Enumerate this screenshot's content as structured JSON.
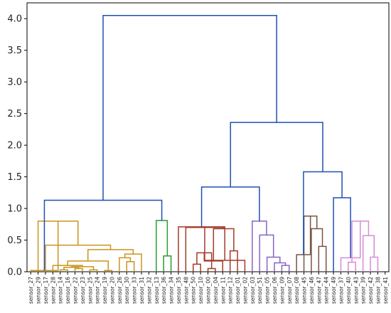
{
  "chart_data": {
    "type": "dendrogram",
    "title": "",
    "xlabel": "",
    "ylabel": "",
    "ylim": [
      0,
      4.25
    ],
    "yticks": [
      "0.0",
      "0.5",
      "1.0",
      "1.5",
      "2.0",
      "2.5",
      "3.0",
      "3.5",
      "4.0"
    ],
    "grid": false,
    "above_threshold_color": "#1f4fb4",
    "cluster_colors": [
      "#c9941f",
      "#2f9a2f",
      "#a23a2a",
      "#8a63c4",
      "#7a5444",
      "#d88ad8"
    ],
    "leaves": [
      "sensor_27",
      "sensor_29",
      "sensor_17",
      "sensor_28",
      "sensor_14",
      "sensor_16",
      "sensor_22",
      "sensor_23",
      "sensor_25",
      "sensor_24",
      "sensor_19",
      "sensor_20",
      "sensor_26",
      "sensor_30",
      "sensor_33",
      "sensor_31",
      "sensor_32",
      "sensor_13",
      "sensor_36",
      "sensor_34",
      "sensor_35",
      "sensor_48",
      "sensor_50",
      "sensor_10",
      "sensor_00",
      "sensor_04",
      "sensor_11",
      "sensor_12",
      "sensor_01",
      "sensor_02",
      "sensor_03",
      "sensor_51",
      "sensor_05",
      "sensor_06",
      "sensor_09",
      "sensor_07",
      "sensor_08",
      "sensor_45",
      "sensor_46",
      "sensor_47",
      "sensor_44",
      "sensor_49",
      "sensor_37",
      "sensor_40",
      "sensor_43",
      "sensor_39",
      "sensor_42",
      "sensor_38",
      "sensor_41"
    ],
    "merges": [
      {
        "a": "L23",
        "b": "L24",
        "h": 0.12,
        "cluster": 2
      },
      {
        "a": "L25",
        "b": "L26",
        "h": 0.05,
        "cluster": 2
      },
      {
        "a": "M1",
        "b": "M2",
        "h": 0.3,
        "cluster": 2
      },
      {
        "a": "M3",
        "b": "L27",
        "h": 0.17,
        "cluster": 2
      },
      {
        "a": "L28",
        "b": "L29",
        "h": 0.33,
        "cluster": 2
      },
      {
        "a": "M4",
        "b": "M5",
        "h": 0.68,
        "cluster": 2
      },
      {
        "a": "L22",
        "b": "M6",
        "h": 0.7,
        "cluster": 2
      },
      {
        "a": "M7",
        "b": "L30",
        "h": 0.18,
        "cluster": 2
      },
      {
        "a": "L21",
        "b": "M8",
        "h": 0.71,
        "cluster": 2
      },
      {
        "a": "L5",
        "b": "L6",
        "h": 0.03,
        "cluster": 0
      },
      {
        "a": "L7",
        "b": "L8",
        "h": 0.05,
        "cluster": 0
      },
      {
        "a": "M10",
        "b": "M11",
        "h": 0.07,
        "cluster": 0
      },
      {
        "a": "L9",
        "b": "L10",
        "h": 0.03,
        "cluster": 0
      },
      {
        "a": "M12",
        "b": "M13",
        "h": 0.08,
        "cluster": 0
      },
      {
        "a": "L4",
        "b": "M14",
        "h": 0.1,
        "cluster": 0
      },
      {
        "a": "L11",
        "b": "L12",
        "h": 0.02,
        "cluster": 0
      },
      {
        "a": "M15",
        "b": "M16",
        "h": 0.17,
        "cluster": 0
      },
      {
        "a": "L14",
        "b": "L15",
        "h": 0.16,
        "cluster": 0
      },
      {
        "a": "L13",
        "b": "M18",
        "h": 0.22,
        "cluster": 0
      },
      {
        "a": "M19",
        "b": "L16",
        "h": 0.28,
        "cluster": 0
      },
      {
        "a": "M17",
        "b": "M20",
        "h": 0.35,
        "cluster": 0
      },
      {
        "a": "L3",
        "b": "M21",
        "h": 0.42,
        "cluster": 0
      },
      {
        "a": "L2",
        "b": "M22",
        "h": 0.8,
        "cluster": 0
      },
      {
        "a": "L1",
        "b": "M23",
        "h": 0.02,
        "cluster": 0
      },
      {
        "a": "L19",
        "b": "L20",
        "h": 0.25,
        "cluster": 1
      },
      {
        "a": "L18",
        "b": "M25",
        "h": 0.81,
        "cluster": 1
      },
      {
        "a": "M24",
        "b": "M26",
        "h": 1.13,
        "cluster": -1
      },
      {
        "a": "L35",
        "b": "L36",
        "h": 0.1,
        "cluster": 3
      },
      {
        "a": "L34",
        "b": "M28",
        "h": 0.14,
        "cluster": 3
      },
      {
        "a": "L33",
        "b": "M29",
        "h": 0.23,
        "cluster": 3
      },
      {
        "a": "L32",
        "b": "M30",
        "h": 0.58,
        "cluster": 3
      },
      {
        "a": "L31",
        "b": "M31",
        "h": 0.8,
        "cluster": 3
      },
      {
        "a": "M9",
        "b": "M32",
        "h": 1.34,
        "cluster": -1
      },
      {
        "a": "L40",
        "b": "L41",
        "h": 0.4,
        "cluster": 4
      },
      {
        "a": "L39",
        "b": "M34",
        "h": 0.68,
        "cluster": 4
      },
      {
        "a": "L38",
        "b": "M35",
        "h": 0.88,
        "cluster": 4
      },
      {
        "a": "L37",
        "b": "M36",
        "h": 0.27,
        "cluster": 4
      },
      {
        "a": "L44",
        "b": "L45",
        "h": 0.15,
        "cluster": 5
      },
      {
        "a": "L47",
        "b": "L48",
        "h": 0.23,
        "cluster": 5
      },
      {
        "a": "L46",
        "b": "M39",
        "h": 0.57,
        "cluster": 5
      },
      {
        "a": "M38",
        "b": "M40",
        "h": 0.8,
        "cluster": 5
      },
      {
        "a": "L43",
        "b": "M41",
        "h": 0.22,
        "cluster": 5
      },
      {
        "a": "L42",
        "b": "M42",
        "h": 1.17,
        "cluster": -1
      },
      {
        "a": "M37",
        "b": "M43",
        "h": 1.58,
        "cluster": -1
      },
      {
        "a": "M33",
        "b": "M44",
        "h": 2.36,
        "cluster": -1
      },
      {
        "a": "M27",
        "b": "M45",
        "h": 4.05,
        "cluster": -1
      }
    ]
  }
}
